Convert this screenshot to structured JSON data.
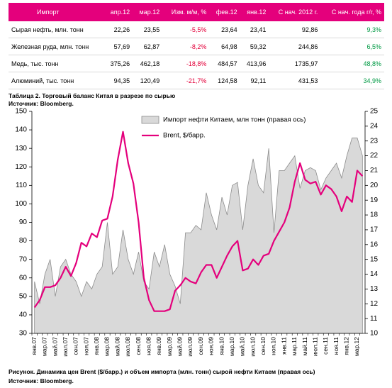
{
  "table": {
    "header": [
      "Импорт",
      "апр.12",
      "мар.12",
      "Изм. м/м, %",
      "фев.12",
      "янв.12",
      "С нач. 2012 г.",
      "С нач. года г/г, %"
    ],
    "rows": [
      [
        "Сырая нефть, млн. тонн",
        "22,26",
        "23,55",
        "-5,5%",
        "23,64",
        "23,41",
        "92,86",
        "9,3%"
      ],
      [
        "Железная руда, млн. тонн",
        "57,69",
        "62,87",
        "-8,2%",
        "64,98",
        "59,32",
        "244,86",
        "6,5%"
      ],
      [
        "Медь, тыс. тонн",
        "375,26",
        "462,18",
        "-18,8%",
        "484,57",
        "413,96",
        "1735,97",
        "48,8%"
      ],
      [
        "Алюминий, тыс. тонн",
        "94,35",
        "120,49",
        "-21,7%",
        "124,58",
        "92,11",
        "431,53",
        "34,9%"
      ]
    ]
  },
  "table_caption": "Таблица 2. Торговый баланс Китая в разрезе по сырью",
  "table_source": "Источник: Bloomberg.",
  "chart_data": {
    "type": "line",
    "categories": [
      "янв.07",
      null,
      "мар.07",
      null,
      "май.07",
      null,
      "июл.07",
      null,
      "сен.07",
      null,
      "ноя.07",
      null,
      "янв.08",
      null,
      "мар.08",
      null,
      "май.08",
      null,
      "июл.08",
      null,
      "сен.08",
      null,
      "ноя.08",
      null,
      "янв.09",
      null,
      "мар.09",
      null,
      "май.09",
      null,
      "июл.09",
      null,
      "сен.09",
      null,
      "ноя.09",
      null,
      "янв.10",
      null,
      "мар.10",
      null,
      "май.10",
      null,
      "июл.10",
      null,
      "сен.10",
      null,
      "ноя.10",
      null,
      "янв.11",
      null,
      "мар.11",
      null,
      "май.11",
      null,
      "июл.11",
      null,
      "сен.11",
      null,
      "ноя.11",
      null,
      "янв.12",
      null,
      "мар.12",
      null
    ],
    "series": [
      {
        "name": "Импорт нефти Китаем, млн тонн (правая ось)",
        "type": "area",
        "axis": "y2",
        "color": "#d9d9d9",
        "stroke": "#8c8c8c",
        "values": [
          13.5,
          12,
          14,
          15,
          12.5,
          14.5,
          15,
          14,
          13.5,
          12.5,
          13.5,
          13,
          14,
          14.5,
          17.5,
          14,
          14.5,
          17,
          15,
          14,
          15.5,
          13.5,
          13,
          15.5,
          14.5,
          16,
          14,
          13.2,
          12,
          16.8,
          16.8,
          17.3,
          17,
          19.5,
          18,
          17,
          19.2,
          18,
          20,
          20.2,
          17,
          20,
          21.8,
          20,
          19.5,
          22.5,
          16.8,
          21,
          21,
          21.5,
          22,
          19.8,
          21,
          21.2,
          21,
          19.7,
          20.5,
          21,
          21.5,
          20.5,
          22,
          23.2,
          23.2,
          22
        ]
      },
      {
        "name": "Brent, $/барр.",
        "type": "line",
        "color": "#e4007c",
        "values": [
          44,
          48,
          55,
          55,
          56,
          60,
          66,
          61,
          68,
          79,
          77,
          84,
          82,
          91,
          92,
          104,
          124,
          139,
          122,
          111,
          90,
          60,
          48,
          42,
          42,
          42,
          43,
          53,
          56,
          60,
          58,
          57,
          63,
          67,
          67,
          60,
          66,
          72,
          77,
          80,
          64,
          65,
          70,
          67,
          72,
          73,
          80,
          85,
          90,
          98,
          112,
          122,
          113,
          111,
          112,
          105,
          110,
          108,
          104,
          96,
          104,
          101,
          118,
          115
        ]
      }
    ],
    "ylim": [
      30,
      150
    ],
    "yticks": [
      30,
      40,
      50,
      60,
      70,
      80,
      90,
      100,
      110,
      120,
      130,
      140,
      150
    ],
    "y2lim": [
      10,
      25
    ],
    "y2ticks": [
      10,
      11,
      12,
      13,
      14,
      15,
      16,
      17,
      18,
      19,
      20,
      21,
      22,
      23,
      24,
      25
    ],
    "legend": "upper center",
    "grid": false
  },
  "figure_caption": "Рисунок. Динамика цен Brent ($/барр.) и объем импорта (млн. тонн) сырой нефти Китаем (правая ось)",
  "figure_source": "Источник: Bloomberg."
}
